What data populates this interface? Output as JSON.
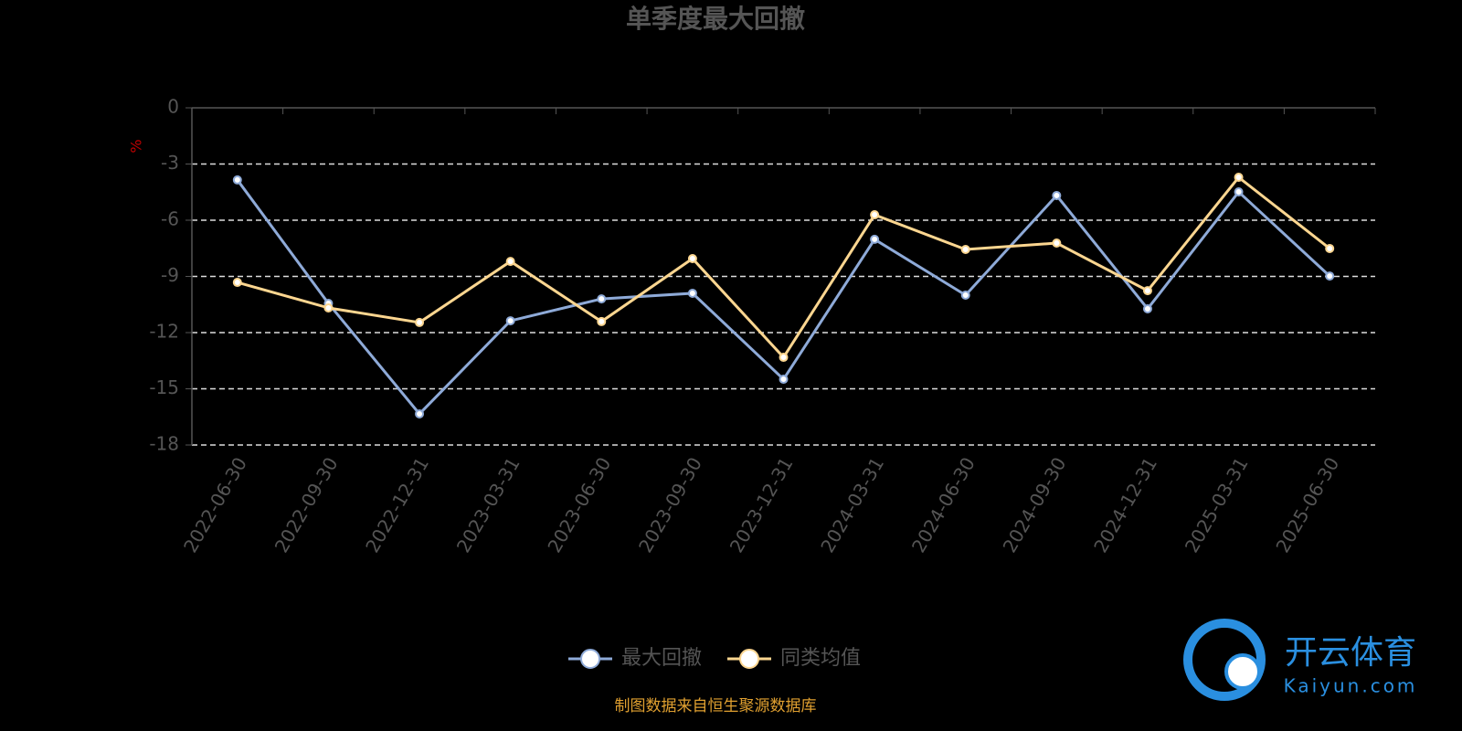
{
  "chart_data": {
    "type": "line",
    "title": "单季度最大回撤",
    "y_label": "%",
    "categories": [
      "2022-06-30",
      "2022-09-30",
      "2022-12-31",
      "2023-03-31",
      "2023-06-30",
      "2023-09-30",
      "2023-12-31",
      "2024-03-31",
      "2024-06-30",
      "2024-09-30",
      "2024-12-31",
      "2025-03-31",
      "2025-06-30"
    ],
    "series": [
      {
        "name": "最大回撤",
        "color": "#8eaad8",
        "values": [
          -3.85,
          -10.44,
          -16.34,
          -11.37,
          -10.2,
          -9.9,
          -14.49,
          -7.02,
          -10.0,
          -4.68,
          -10.73,
          -4.49,
          -8.98
        ]
      },
      {
        "name": "同类均值",
        "color": "#fcd690",
        "values": [
          -9.32,
          -10.68,
          -11.46,
          -8.2,
          -11.41,
          -8.05,
          -13.32,
          -5.71,
          -7.56,
          -7.22,
          -9.76,
          -3.71,
          -7.51
        ]
      }
    ],
    "ylim": [
      -18,
      0
    ],
    "yticks": [
      0,
      -3,
      -6,
      -9,
      -12,
      -15,
      -18
    ],
    "grid": true,
    "footer": "制图数据来自恒生聚源数据库",
    "watermark": {
      "brand": "开云体育",
      "site": "Kaiyun.com"
    }
  }
}
